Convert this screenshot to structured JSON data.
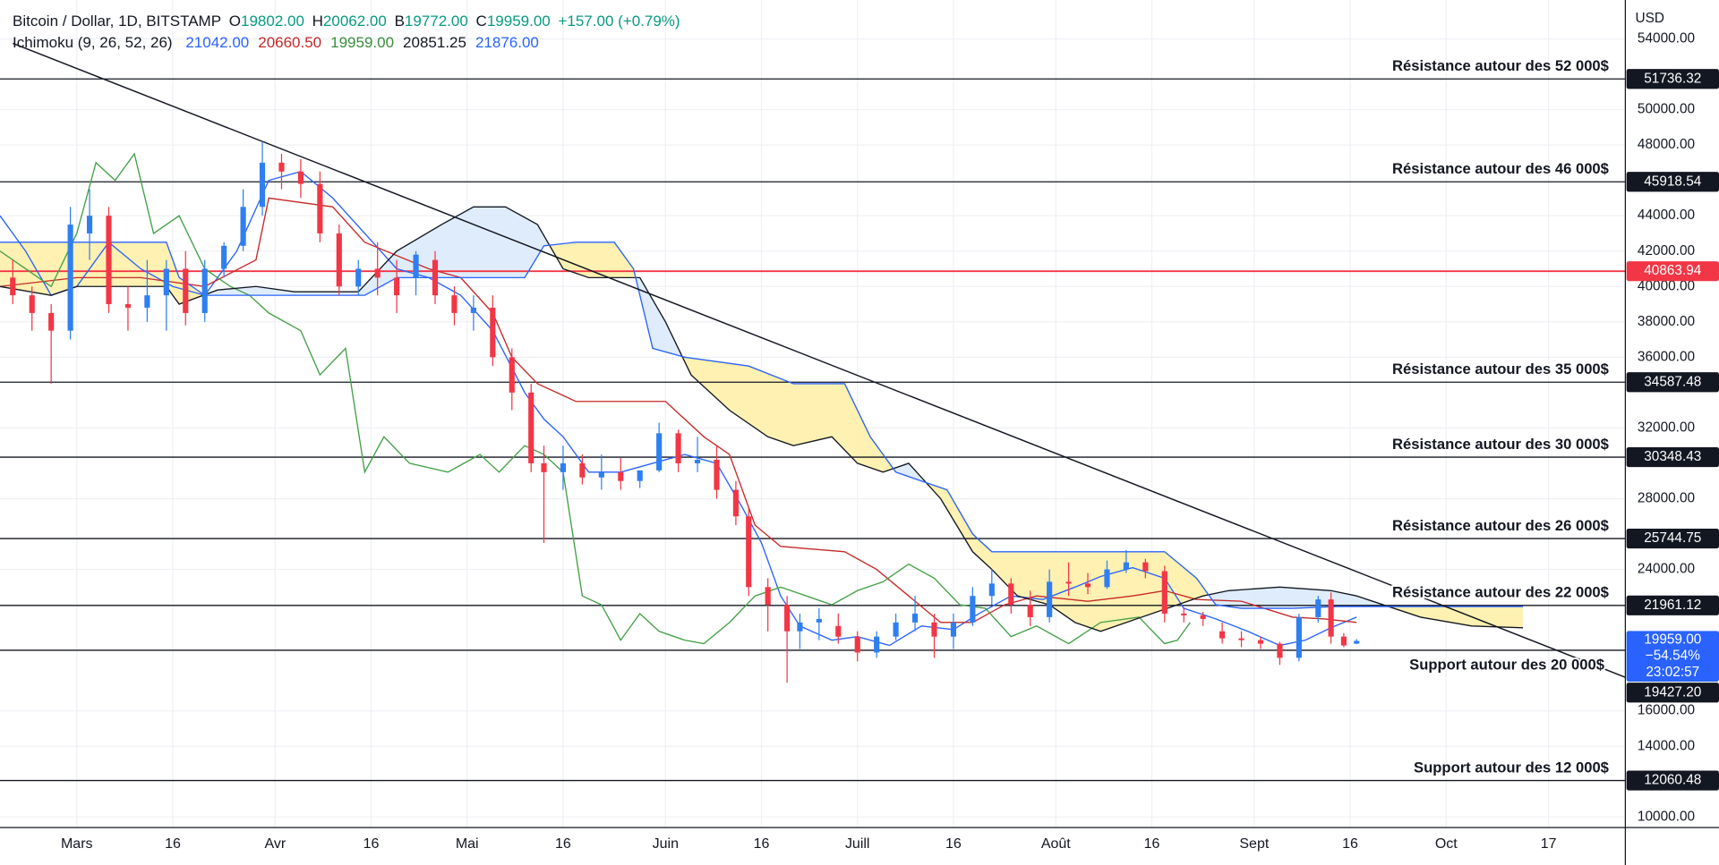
{
  "chart_data": {
    "type": "candlestick",
    "header": {
      "symbol": "Bitcoin / Dollar, 1D, BITSTAMP",
      "ohlc": [
        {
          "key": "O",
          "value": "19802.00"
        },
        {
          "key": "H",
          "value": "20062.00"
        },
        {
          "key": "B",
          "value": "19772.00"
        },
        {
          "key": "C",
          "value": "19959.00"
        }
      ],
      "change": "+157.00 (+0.79%)"
    },
    "indicator": {
      "name": "Ichimoku (9, 26, 52, 26)",
      "values": [
        {
          "label": "21042.00",
          "color": "#2962ff"
        },
        {
          "label": "20660.50",
          "color": "#c62828"
        },
        {
          "label": "19959.00",
          "color": "#388e3c"
        },
        {
          "label": "20851.25",
          "color": "#131722"
        },
        {
          "label": "21876.00",
          "color": "#2962ff"
        }
      ]
    },
    "y_axis_label": "USD",
    "xlim": [
      -12,
      242
    ],
    "ylim": [
      9400,
      56200
    ],
    "grid": true,
    "xticks": [
      {
        "value": 0,
        "label": "Mars"
      },
      {
        "value": 15,
        "label": "16"
      },
      {
        "value": 31,
        "label": "Avr"
      },
      {
        "value": 46,
        "label": "16"
      },
      {
        "value": 61,
        "label": "Mai"
      },
      {
        "value": 76,
        "label": "16"
      },
      {
        "value": 92,
        "label": "Juin"
      },
      {
        "value": 107,
        "label": "16"
      },
      {
        "value": 122,
        "label": "Juill"
      },
      {
        "value": 137,
        "label": "16"
      },
      {
        "value": 153,
        "label": "Août"
      },
      {
        "value": 168,
        "label": "16"
      },
      {
        "value": 184,
        "label": "Sept"
      },
      {
        "value": 199,
        "label": "16"
      },
      {
        "value": 214,
        "label": "Oct"
      },
      {
        "value": 230,
        "label": "17"
      }
    ],
    "yticks": [
      {
        "value": 10000,
        "label": "10000.00"
      },
      {
        "value": 14000,
        "label": "14000.00"
      },
      {
        "value": 16000,
        "label": "16000.00"
      },
      {
        "value": 24000,
        "label": "24000.00"
      },
      {
        "value": 28000,
        "label": "28000.00"
      },
      {
        "value": 32000,
        "label": "32000.00"
      },
      {
        "value": 36000,
        "label": "36000.00"
      },
      {
        "value": 38000,
        "label": "38000.00"
      },
      {
        "value": 40000,
        "label": "40000.00"
      },
      {
        "value": 42000,
        "label": "42000.00"
      },
      {
        "value": 44000,
        "label": "44000.00"
      },
      {
        "value": 48000,
        "label": "48000.00"
      },
      {
        "value": 50000,
        "label": "50000.00"
      },
      {
        "value": 54000,
        "label": "54000.00"
      }
    ],
    "candles": {
      "up_color": "#2f7ff0",
      "down_color": "#f23645",
      "x": [
        -10,
        -7,
        -4,
        -1,
        2,
        5,
        8,
        11,
        14,
        17,
        20,
        23,
        26,
        29,
        32,
        35,
        38,
        41,
        44,
        47,
        50,
        53,
        56,
        59,
        62,
        65,
        68,
        71,
        73,
        76,
        79,
        82,
        85,
        88,
        91,
        94,
        97,
        100,
        103,
        105,
        108,
        111,
        113,
        116,
        119,
        122,
        125,
        128,
        131,
        134,
        137,
        140,
        143,
        146,
        149,
        152,
        155,
        158,
        161,
        164,
        167,
        170,
        173,
        176,
        179,
        182,
        185,
        188,
        191,
        194,
        196,
        198,
        200
      ],
      "open": [
        40500,
        39500,
        38500,
        37500,
        43000,
        44000,
        39000,
        38800,
        39500,
        41000,
        38500,
        41000,
        42300,
        44500,
        47000,
        46500,
        45800,
        43000,
        40000,
        41000,
        40500,
        40500,
        41500,
        39500,
        38500,
        38800,
        36000,
        34000,
        30000,
        29500,
        30000,
        29200,
        29500,
        29000,
        29600,
        31700,
        30000,
        30200,
        28500,
        27000,
        23000,
        22000,
        20500,
        21000,
        20800,
        20200,
        19300,
        20200,
        21000,
        21000,
        20200,
        21000,
        22500,
        23200,
        22000,
        21300,
        23300,
        23200,
        23000,
        24000,
        24400,
        23900,
        21500,
        21400,
        20500,
        20100,
        20000,
        19800,
        19000,
        21300,
        22300,
        20200,
        19802
      ],
      "high": [
        41500,
        40000,
        39000,
        44500,
        45500,
        44500,
        40000,
        41500,
        41500,
        42000,
        41500,
        42500,
        45500,
        48200,
        47500,
        47200,
        46500,
        43500,
        41500,
        42500,
        41500,
        42000,
        42000,
        40000,
        39500,
        39500,
        36500,
        34500,
        31000,
        31000,
        30500,
        30500,
        30300,
        29500,
        32300,
        31900,
        31500,
        31000,
        29000,
        27500,
        23500,
        22500,
        21500,
        21800,
        21500,
        20500,
        20500,
        21500,
        22500,
        21500,
        21500,
        23000,
        24000,
        23500,
        22800,
        24000,
        24400,
        23800,
        24500,
        25100,
        24600,
        24200,
        21800,
        21600,
        21000,
        20500,
        20200,
        19900,
        21500,
        22500,
        22700,
        20400,
        20062
      ],
      "low": [
        39000,
        37500,
        34500,
        37000,
        41500,
        38500,
        37500,
        38000,
        37500,
        37800,
        38000,
        40500,
        42000,
        44000,
        45500,
        45000,
        42500,
        39500,
        39500,
        39500,
        38500,
        39500,
        39000,
        37800,
        37500,
        35500,
        33000,
        29500,
        25500,
        28500,
        28800,
        28500,
        28500,
        28600,
        29500,
        29500,
        29500,
        28000,
        26500,
        22500,
        20500,
        17600,
        19500,
        20000,
        19800,
        18800,
        19000,
        20000,
        20500,
        19000,
        19500,
        20800,
        22000,
        21500,
        20800,
        21000,
        22500,
        22600,
        22900,
        23800,
        23500,
        21000,
        21000,
        20800,
        19800,
        19600,
        19500,
        18600,
        18800,
        21000,
        19800,
        19600,
        19772
      ],
      "close": [
        39500,
        38500,
        37500,
        43500,
        44000,
        39000,
        38800,
        39500,
        41000,
        38500,
        41000,
        42300,
        44500,
        47000,
        46500,
        45800,
        43000,
        40000,
        41000,
        40500,
        39500,
        41800,
        39500,
        38500,
        38800,
        36000,
        34000,
        30000,
        29500,
        30000,
        29200,
        29500,
        29000,
        29600,
        31700,
        30000,
        30200,
        28500,
        27000,
        23000,
        22000,
        20500,
        21000,
        21200,
        20200,
        19300,
        20200,
        21000,
        21500,
        20200,
        21000,
        22500,
        23200,
        22000,
        21300,
        23300,
        23200,
        23000,
        24000,
        24400,
        23900,
        21500,
        21400,
        21200,
        20100,
        20000,
        19800,
        19000,
        21300,
        22300,
        20200,
        19700,
        19959
      ]
    },
    "lines": [
      {
        "color": "#2962ff",
        "x": [
          -12,
          -8,
          -4,
          0,
          5,
          10,
          15,
          20,
          25,
          30,
          35,
          40,
          45,
          50,
          55,
          60,
          65,
          70,
          73,
          76,
          80,
          85,
          90,
          95,
          100,
          104,
          107,
          110,
          113,
          118,
          122,
          127,
          132,
          137,
          141,
          146,
          151,
          156,
          160,
          165,
          170,
          173,
          178,
          183,
          188,
          192,
          196,
          200
        ],
        "values": [
          44000,
          42000,
          39500,
          40000,
          42500,
          41000,
          40000,
          39500,
          42000,
          46000,
          46500,
          45000,
          43000,
          41000,
          40500,
          39500,
          37500,
          34000,
          32500,
          31500,
          29500,
          29500,
          30000,
          30500,
          30000,
          27500,
          25500,
          22500,
          20800,
          20000,
          20200,
          19700,
          20800,
          20600,
          21500,
          22500,
          22300,
          23000,
          23600,
          24100,
          23500,
          21800,
          21200,
          20500,
          19700,
          20000,
          20700,
          21300
        ]
      },
      {
        "color": "#c62828",
        "x": [
          -12,
          0,
          10,
          20,
          28,
          30,
          40,
          45,
          55,
          60,
          65,
          68,
          72,
          78,
          92,
          98,
          102,
          106,
          110,
          120,
          125,
          130,
          135,
          140,
          145,
          150,
          158,
          165,
          170,
          175,
          182,
          190,
          195,
          200
        ],
        "values": [
          40000,
          40500,
          40500,
          40000,
          41500,
          45000,
          44500,
          42500,
          41000,
          40500,
          38500,
          36000,
          34500,
          33500,
          33500,
          31500,
          30500,
          26500,
          25300,
          25000,
          24000,
          22500,
          21000,
          21000,
          22000,
          22500,
          22200,
          22500,
          22800,
          22300,
          22200,
          21300,
          21200,
          21000
        ]
      },
      {
        "color": "#43a047",
        "x": [
          -12,
          -8,
          -4,
          0,
          3,
          6,
          9,
          12,
          16,
          20,
          24,
          27,
          30,
          35,
          38,
          42,
          45,
          48,
          52,
          58,
          63,
          66,
          70,
          73,
          76,
          79,
          82,
          85,
          88,
          91,
          95,
          98,
          102,
          106,
          110,
          114,
          118,
          122,
          126,
          130,
          134,
          138,
          142,
          146,
          150,
          155,
          160,
          166,
          170,
          172,
          174
        ],
        "values": [
          42000,
          41000,
          40000,
          43000,
          47000,
          46000,
          47500,
          43000,
          44000,
          41000,
          40000,
          39500,
          38500,
          37500,
          35000,
          36500,
          29500,
          31500,
          30000,
          29500,
          30500,
          29500,
          31000,
          30500,
          29500,
          22500,
          22000,
          20000,
          21500,
          20500,
          20000,
          19800,
          21000,
          22500,
          23000,
          22500,
          22000,
          22800,
          23300,
          24300,
          23500,
          22000,
          21800,
          20200,
          20800,
          19800,
          21000,
          21300,
          19800,
          20000,
          21000
        ]
      },
      {
        "color": "#131722",
        "x": [
          -12,
          -4,
          0,
          5,
          10,
          14,
          16,
          22,
          28,
          34,
          44,
          50,
          57,
          62,
          67,
          72,
          76,
          80,
          88,
          92,
          96,
          102,
          108,
          112,
          118,
          122,
          126,
          130,
          135,
          140,
          143,
          147,
          152,
          156,
          160,
          164,
          168,
          172,
          176,
          180,
          188,
          196,
          200,
          210,
          218,
          226
        ],
        "values": [
          40000,
          39500,
          40000,
          40000,
          40000,
          40000,
          39000,
          39800,
          40000,
          39700,
          39700,
          42000,
          43500,
          44500,
          44500,
          43500,
          41000,
          40500,
          40500,
          38000,
          35000,
          33000,
          31500,
          31000,
          31500,
          30000,
          29500,
          30000,
          28000,
          25000,
          24000,
          22500,
          22000,
          21000,
          20500,
          21000,
          21500,
          22000,
          22500,
          22800,
          23000,
          22800,
          22500,
          21300,
          20800,
          20700
        ]
      },
      {
        "color": "#2962ff",
        "x": [
          -12,
          14,
          16,
          20,
          45,
          50,
          56,
          70,
          73,
          78,
          84,
          87,
          90,
          95,
          105,
          112,
          120,
          124,
          128,
          132,
          136,
          140,
          143,
          150,
          170,
          175,
          178,
          182,
          190,
          197,
          226
        ],
        "values": [
          42500,
          42500,
          40500,
          39500,
          39500,
          40500,
          40500,
          40500,
          42300,
          42500,
          42500,
          41000,
          36500,
          36000,
          35500,
          34500,
          34500,
          31500,
          29500,
          29000,
          28500,
          26000,
          25000,
          25000,
          25000,
          23500,
          22000,
          21800,
          21800,
          21900,
          21900
        ]
      }
    ],
    "cloud": {
      "colors": [
        "#fff0a8",
        "#dceafb"
      ]
    },
    "trendline": {
      "color": "#131722",
      "x": [
        -10,
        242
      ],
      "values": [
        53750,
        17900
      ]
    },
    "levels": [
      {
        "value": 51736.32,
        "label": "51736.32",
        "text": "Résistance autour des 52 000$",
        "color": "#131722"
      },
      {
        "value": 45918.54,
        "label": "45918.54",
        "text": "Résistance autour des 46 000$",
        "color": "#131722"
      },
      {
        "value": 40863.94,
        "label": "40863.94",
        "color": "#f23645"
      },
      {
        "value": 34587.48,
        "label": "34587.48",
        "text": "Résistance autour des 35 000$",
        "color": "#131722"
      },
      {
        "value": 30348.43,
        "label": "30348.43",
        "text": "Résistance autour des 30 000$",
        "color": "#131722"
      },
      {
        "value": 25744.75,
        "label": "25744.75",
        "text": "Résistance autour des 26 000$",
        "color": "#131722"
      },
      {
        "value": 21961.12,
        "label": "21961.12",
        "text": "Résistance autour des 22 000$",
        "color": "#131722"
      },
      {
        "value": 19427.2,
        "label": "19427.20",
        "text": "Support autour des 20 000$",
        "color": "#131722"
      },
      {
        "value": 12060.48,
        "label": "12060.48",
        "text": "Support autour des 12 000$",
        "color": "#131722"
      }
    ],
    "current": {
      "value": 19959,
      "labels": [
        "19959.00",
        "−54.54%",
        "23:02:57"
      ],
      "color": "#2962ff"
    }
  }
}
